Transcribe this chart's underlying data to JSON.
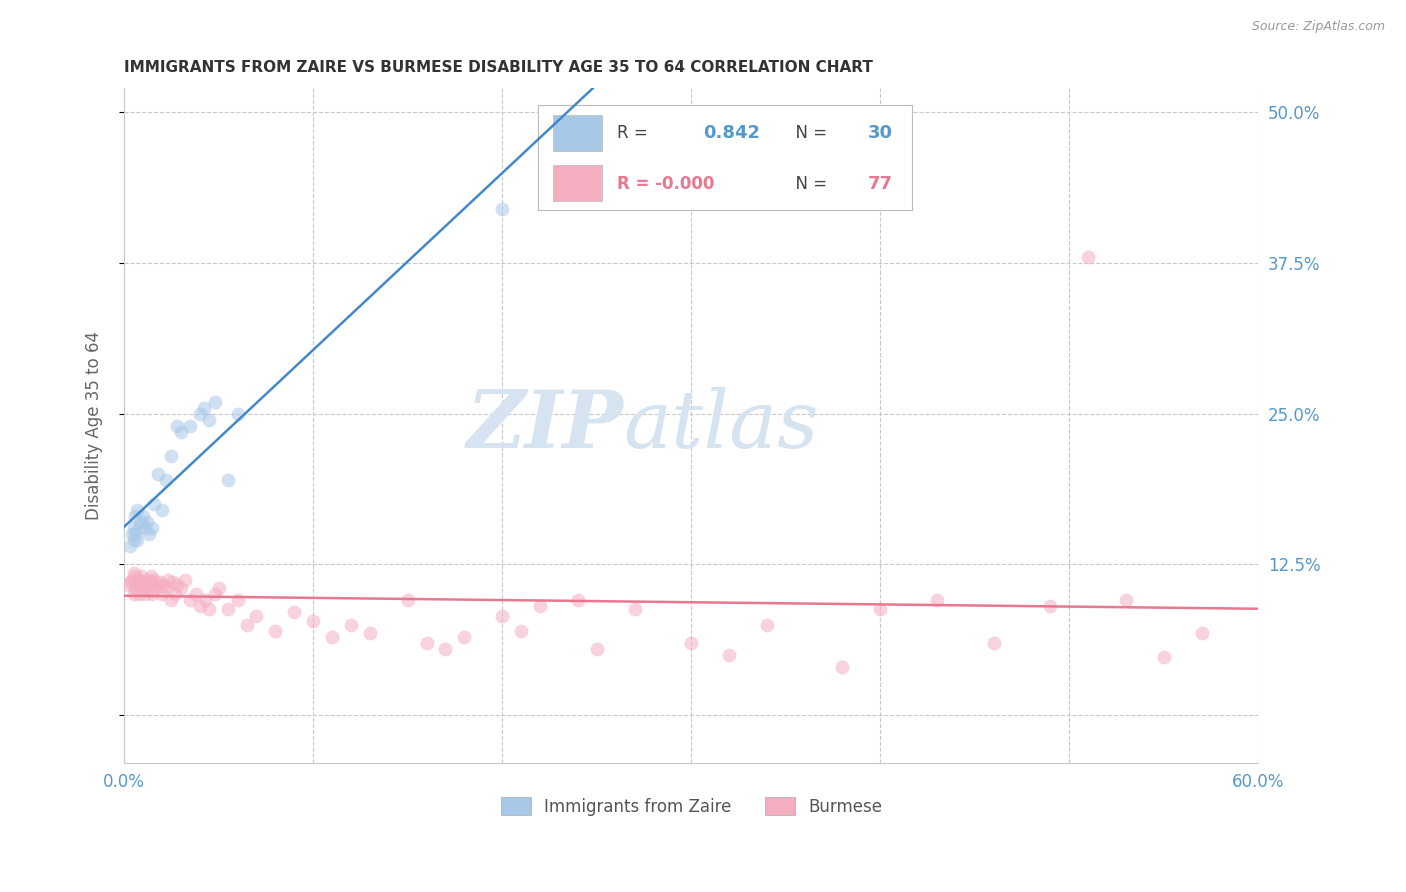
{
  "title": "IMMIGRANTS FROM ZAIRE VS BURMESE DISABILITY AGE 35 TO 64 CORRELATION CHART",
  "source": "Source: ZipAtlas.com",
  "ylabel": "Disability Age 35 to 64",
  "xlim": [
    0.0,
    0.6
  ],
  "ylim": [
    -0.04,
    0.52
  ],
  "xticks": [
    0.0,
    0.1,
    0.2,
    0.3,
    0.4,
    0.5,
    0.6
  ],
  "yticks_right": [
    0.0,
    0.125,
    0.25,
    0.375,
    0.5
  ],
  "yticklabels_right": [
    "",
    "12.5%",
    "25.0%",
    "37.5%",
    "50.0%"
  ],
  "grid_color": "#c8c8c8",
  "background_color": "#ffffff",
  "zaire_color": "#a8c8e8",
  "burmese_color": "#f4aec0",
  "zaire_line_color": "#4488cc",
  "burmese_line_color": "#e87890",
  "zaire_R": 0.842,
  "zaire_N": 30,
  "burmese_R": -0.0,
  "burmese_N": 77,
  "label_color": "#5599cc",
  "title_color": "#333333",
  "source_color": "#999999",
  "zaire_points_x": [
    0.003,
    0.004,
    0.005,
    0.005,
    0.006,
    0.006,
    0.007,
    0.007,
    0.008,
    0.009,
    0.01,
    0.011,
    0.012,
    0.013,
    0.015,
    0.016,
    0.018,
    0.02,
    0.022,
    0.025,
    0.028,
    0.03,
    0.035,
    0.04,
    0.042,
    0.045,
    0.048,
    0.055,
    0.06,
    0.2
  ],
  "zaire_points_y": [
    0.14,
    0.15,
    0.155,
    0.145,
    0.15,
    0.165,
    0.17,
    0.145,
    0.155,
    0.16,
    0.165,
    0.155,
    0.16,
    0.15,
    0.155,
    0.175,
    0.2,
    0.17,
    0.195,
    0.215,
    0.24,
    0.235,
    0.24,
    0.25,
    0.255,
    0.245,
    0.26,
    0.195,
    0.25,
    0.42
  ],
  "burmese_points_x": [
    0.002,
    0.003,
    0.004,
    0.005,
    0.005,
    0.006,
    0.006,
    0.007,
    0.007,
    0.008,
    0.008,
    0.009,
    0.009,
    0.01,
    0.01,
    0.011,
    0.011,
    0.012,
    0.013,
    0.013,
    0.014,
    0.014,
    0.015,
    0.015,
    0.016,
    0.017,
    0.018,
    0.019,
    0.02,
    0.021,
    0.022,
    0.023,
    0.025,
    0.026,
    0.027,
    0.028,
    0.03,
    0.032,
    0.035,
    0.038,
    0.04,
    0.043,
    0.045,
    0.048,
    0.05,
    0.055,
    0.06,
    0.065,
    0.07,
    0.08,
    0.09,
    0.1,
    0.11,
    0.12,
    0.13,
    0.15,
    0.16,
    0.17,
    0.18,
    0.2,
    0.21,
    0.22,
    0.24,
    0.25,
    0.27,
    0.3,
    0.32,
    0.34,
    0.38,
    0.4,
    0.43,
    0.46,
    0.49,
    0.51,
    0.53,
    0.55,
    0.57
  ],
  "burmese_points_y": [
    0.108,
    0.11,
    0.112,
    0.1,
    0.118,
    0.105,
    0.115,
    0.11,
    0.108,
    0.112,
    0.1,
    0.115,
    0.108,
    0.11,
    0.105,
    0.112,
    0.1,
    0.108,
    0.112,
    0.105,
    0.11,
    0.115,
    0.108,
    0.1,
    0.112,
    0.105,
    0.108,
    0.11,
    0.1,
    0.108,
    0.105,
    0.112,
    0.095,
    0.11,
    0.1,
    0.108,
    0.105,
    0.112,
    0.095,
    0.1,
    0.09,
    0.095,
    0.088,
    0.1,
    0.105,
    0.088,
    0.095,
    0.075,
    0.082,
    0.07,
    0.085,
    0.078,
    0.065,
    0.075,
    0.068,
    0.095,
    0.06,
    0.055,
    0.065,
    0.082,
    0.07,
    0.09,
    0.095,
    0.055,
    0.088,
    0.06,
    0.05,
    0.075,
    0.04,
    0.088,
    0.095,
    0.06,
    0.09,
    0.38,
    0.095,
    0.048,
    0.068
  ],
  "watermark_zip": "ZIP",
  "watermark_atlas": "atlas",
  "watermark_color": "#d5e4f0",
  "marker_size": 100,
  "marker_alpha": 0.55
}
